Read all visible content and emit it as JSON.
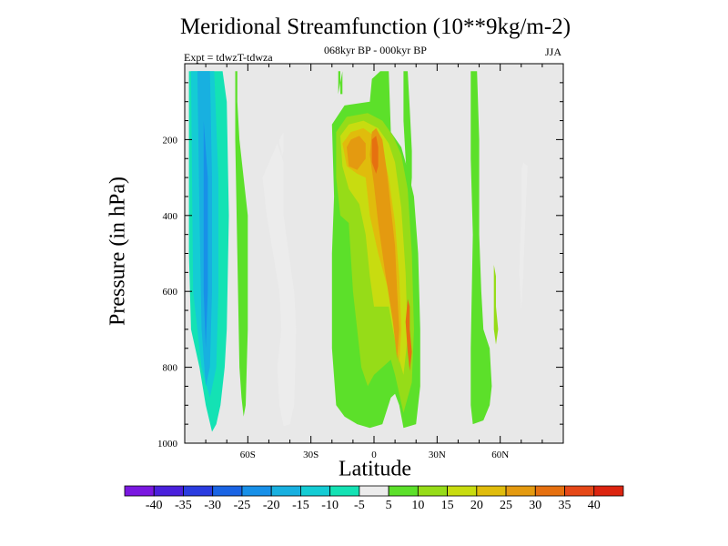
{
  "title": "Meridional Streamfunction (10**9kg/m-2)",
  "experiment": "Expt = tdwzT-tdwza",
  "period": "068kyr BP - 000kyr BP",
  "season": "JJA",
  "chart_data": {
    "type": "heatmap",
    "title": "Meridional Streamfunction (10**9kg/m-2)",
    "xlabel": "Latitude",
    "ylabel": "Pressure (in hPa)",
    "x_ticks": [
      {
        "value": -60,
        "label": "60S"
      },
      {
        "value": -30,
        "label": "30S"
      },
      {
        "value": 0,
        "label": "0"
      },
      {
        "value": 30,
        "label": "30N"
      },
      {
        "value": 60,
        "label": "60N"
      }
    ],
    "y_ticks": [
      200,
      400,
      600,
      800,
      1000
    ],
    "xlim": [
      -90,
      90
    ],
    "ylim": [
      0,
      1000
    ],
    "background_color": "#e8e8e8",
    "colorbar": {
      "labels": [
        "-40",
        "-35",
        "-30",
        "-25",
        "-20",
        "-15",
        "-10",
        "-5",
        "5",
        "10",
        "15",
        "20",
        "25",
        "30",
        "35",
        "40"
      ],
      "colors": [
        "#7a18e0",
        "#4a20dc",
        "#2a3ce0",
        "#1a64e4",
        "#1890e8",
        "#18b0e0",
        "#14ccd4",
        "#14e2b4",
        "#ececec",
        "#5ce02a",
        "#96dc18",
        "#c8dc10",
        "#e0bc0c",
        "#e49a10",
        "#e67010",
        "#e64818",
        "#dc2410"
      ]
    },
    "regions": [
      {
        "level": -10,
        "points": [
          [
            -88,
            20
          ],
          [
            -72,
            20
          ],
          [
            -70,
            100
          ],
          [
            -69,
            400
          ],
          [
            -70,
            700
          ],
          [
            -71,
            800
          ],
          [
            -73,
            900
          ],
          [
            -75,
            950
          ],
          [
            -77,
            970
          ],
          [
            -80,
            900
          ],
          [
            -83,
            800
          ],
          [
            -87,
            700
          ],
          [
            -88,
            500
          ]
        ]
      },
      {
        "level": -15,
        "points": [
          [
            -87,
            20
          ],
          [
            -76,
            20
          ],
          [
            -74,
            300
          ],
          [
            -74,
            600
          ],
          [
            -75,
            800
          ],
          [
            -78,
            880
          ],
          [
            -82,
            800
          ],
          [
            -86,
            600
          ]
        ]
      },
      {
        "level": -20,
        "points": [
          [
            -84,
            20
          ],
          [
            -78,
            20
          ],
          [
            -77,
            300
          ],
          [
            -77,
            600
          ],
          [
            -78,
            800
          ],
          [
            -80,
            850
          ],
          [
            -82,
            700
          ],
          [
            -83,
            400
          ]
        ]
      },
      {
        "level": -25,
        "points": [
          [
            -81,
            150
          ],
          [
            -79,
            300
          ],
          [
            -79,
            600
          ],
          [
            -80,
            750
          ],
          [
            -81,
            600
          ],
          [
            -81,
            300
          ]
        ]
      },
      {
        "level": 5,
        "points": [
          [
            -66,
            20
          ],
          [
            -65,
            20
          ],
          [
            -65,
            100
          ],
          [
            -64,
            200
          ],
          [
            -62,
            300
          ],
          [
            -60,
            400
          ],
          [
            -60,
            700
          ],
          [
            -61,
            900
          ],
          [
            -62,
            930
          ],
          [
            -63,
            880
          ],
          [
            -64,
            800
          ],
          [
            -65,
            500
          ],
          [
            -66,
            200
          ]
        ]
      },
      {
        "level": -5,
        "points": [
          [
            -46,
            210
          ],
          [
            -43,
            260
          ],
          [
            -43,
            400
          ],
          [
            -38,
            600
          ],
          [
            -37,
            700
          ],
          [
            -38,
            900
          ],
          [
            -40,
            950
          ],
          [
            -43,
            955
          ],
          [
            -45,
            900
          ],
          [
            -46,
            800
          ],
          [
            -44,
            700
          ],
          [
            -45,
            600
          ],
          [
            -48,
            500
          ],
          [
            -51,
            400
          ],
          [
            -53,
            300
          ]
        ]
      },
      {
        "level": -5,
        "points": [
          [
            -45,
            200
          ],
          [
            -43,
            180
          ],
          [
            -43,
            230
          ],
          [
            -44,
            250
          ],
          [
            -44,
            230
          ],
          [
            -45,
            210
          ]
        ]
      },
      {
        "level": 5,
        "points": [
          [
            -17,
            20
          ],
          [
            -16,
            20
          ],
          [
            -16,
            50
          ],
          [
            -15,
            20
          ],
          [
            -15,
            80
          ],
          [
            -16,
            80
          ],
          [
            -16,
            50
          ],
          [
            -17,
            80
          ]
        ]
      },
      {
        "level": 5,
        "points": [
          [
            -20,
            160
          ],
          [
            -14,
            110
          ],
          [
            -2,
            100
          ],
          [
            -1,
            40
          ],
          [
            3,
            20
          ],
          [
            7,
            20
          ],
          [
            8,
            180
          ],
          [
            13,
            220
          ],
          [
            16,
            280
          ],
          [
            19,
            350
          ],
          [
            21,
            500
          ],
          [
            22,
            700
          ],
          [
            22,
            850
          ],
          [
            20,
            950
          ],
          [
            14,
            960
          ],
          [
            12,
            900
          ],
          [
            10,
            870
          ],
          [
            8,
            880
          ],
          [
            4,
            950
          ],
          [
            -2,
            960
          ],
          [
            -8,
            950
          ],
          [
            -14,
            930
          ],
          [
            -18,
            900
          ],
          [
            -20,
            750
          ],
          [
            -20,
            500
          ],
          [
            -19,
            350
          ]
        ]
      },
      {
        "level": 10,
        "points": [
          [
            -18,
            180
          ],
          [
            -13,
            140
          ],
          [
            -3,
            130
          ],
          [
            4,
            150
          ],
          [
            9,
            190
          ],
          [
            13,
            240
          ],
          [
            16,
            330
          ],
          [
            18,
            500
          ],
          [
            19,
            700
          ],
          [
            18,
            840
          ],
          [
            14,
            920
          ],
          [
            10,
            820
          ],
          [
            8,
            780
          ],
          [
            4,
            800
          ],
          [
            0,
            820
          ],
          [
            -3,
            850
          ],
          [
            -6,
            800
          ],
          [
            -8,
            700
          ],
          [
            -10,
            600
          ],
          [
            -12,
            420
          ],
          [
            -16,
            400
          ],
          [
            -18,
            300
          ]
        ]
      },
      {
        "level": 15,
        "points": [
          [
            -16,
            190
          ],
          [
            -12,
            160
          ],
          [
            -5,
            150
          ],
          [
            2,
            170
          ],
          [
            7,
            210
          ],
          [
            10,
            260
          ],
          [
            13,
            380
          ],
          [
            15,
            550
          ],
          [
            16,
            720
          ],
          [
            14,
            820
          ],
          [
            11,
            760
          ],
          [
            7,
            640
          ],
          [
            3,
            640
          ],
          [
            0,
            640
          ],
          [
            -2,
            560
          ],
          [
            -4,
            450
          ],
          [
            -7,
            370
          ],
          [
            -12,
            330
          ],
          [
            -15,
            270
          ]
        ]
      },
      {
        "level": 20,
        "points": [
          [
            -15,
            210
          ],
          [
            -11,
            180
          ],
          [
            -5,
            170
          ],
          [
            0,
            190
          ],
          [
            4,
            230
          ],
          [
            7,
            300
          ],
          [
            10,
            420
          ],
          [
            12,
            560
          ],
          [
            13,
            700
          ],
          [
            12,
            790
          ],
          [
            10,
            720
          ],
          [
            7,
            600
          ],
          [
            2,
            500
          ],
          [
            -2,
            400
          ],
          [
            -4,
            300
          ],
          [
            -8,
            290
          ],
          [
            -13,
            270
          ]
        ]
      },
      {
        "level": 25,
        "points": [
          [
            -13,
            220
          ],
          [
            -11,
            200
          ],
          [
            -7,
            190
          ],
          [
            -4,
            210
          ],
          [
            -4,
            250
          ],
          [
            -8,
            280
          ],
          [
            -12,
            270
          ]
        ]
      },
      {
        "level": 25,
        "points": [
          [
            -1,
            180
          ],
          [
            1,
            170
          ],
          [
            4,
            200
          ],
          [
            6,
            280
          ],
          [
            8,
            380
          ],
          [
            10,
            480
          ],
          [
            11,
            600
          ],
          [
            12,
            700
          ],
          [
            11,
            780
          ],
          [
            9,
            680
          ],
          [
            5,
            540
          ],
          [
            2,
            420
          ],
          [
            0,
            320
          ],
          [
            -2,
            240
          ]
        ]
      },
      {
        "level": 30,
        "points": [
          [
            -1,
            200
          ],
          [
            1,
            190
          ],
          [
            2,
            220
          ],
          [
            2,
            270
          ],
          [
            1,
            290
          ],
          [
            -1,
            260
          ]
        ]
      },
      {
        "level": 30,
        "points": [
          [
            16,
            620
          ],
          [
            17,
            640
          ],
          [
            17,
            700
          ],
          [
            18,
            760
          ],
          [
            17,
            810
          ],
          [
            16,
            760
          ],
          [
            15,
            680
          ]
        ]
      },
      {
        "level": 5,
        "points": [
          [
            14,
            20
          ],
          [
            16,
            20
          ],
          [
            17,
            120
          ],
          [
            18,
            230
          ],
          [
            18,
            300
          ],
          [
            17,
            370
          ],
          [
            16,
            330
          ],
          [
            15,
            250
          ],
          [
            14,
            150
          ]
        ]
      },
      {
        "level": 5,
        "points": [
          [
            46,
            20
          ],
          [
            49,
            20
          ],
          [
            50,
            200
          ],
          [
            50,
            450
          ],
          [
            51,
            600
          ],
          [
            52,
            700
          ],
          [
            55,
            750
          ],
          [
            56,
            850
          ],
          [
            55,
            900
          ],
          [
            52,
            940
          ],
          [
            47,
            950
          ],
          [
            46,
            900
          ],
          [
            46,
            750
          ],
          [
            47,
            450
          ],
          [
            46,
            250
          ]
        ]
      },
      {
        "level": 10,
        "points": [
          [
            57,
            530
          ],
          [
            58,
            560
          ],
          [
            58,
            640
          ],
          [
            59,
            700
          ],
          [
            58,
            740
          ],
          [
            57,
            700
          ],
          [
            57,
            620
          ]
        ]
      },
      {
        "level": -5,
        "points": [
          [
            70,
            280
          ],
          [
            71,
            260
          ],
          [
            73,
            270
          ],
          [
            72,
            400
          ],
          [
            71,
            550
          ],
          [
            70,
            650
          ],
          [
            69,
            550
          ],
          [
            70,
            400
          ]
        ]
      }
    ]
  }
}
